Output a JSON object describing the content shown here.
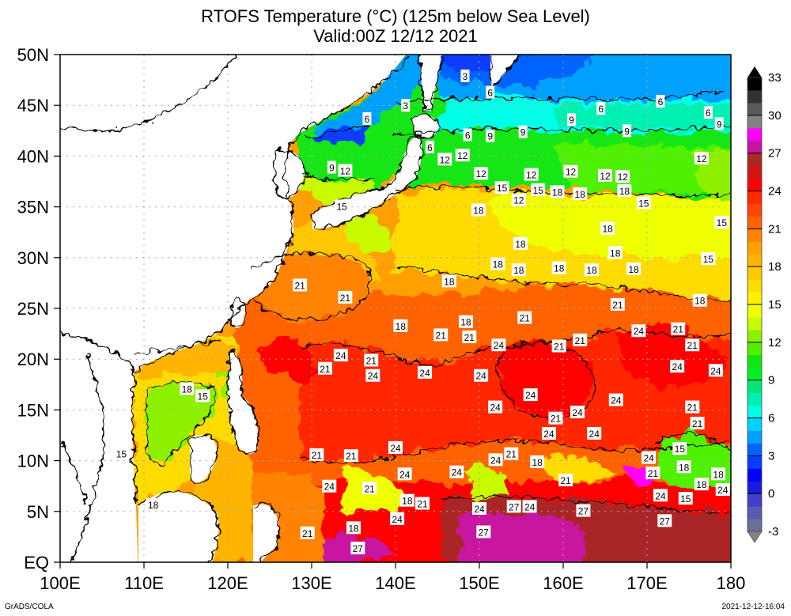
{
  "header": {
    "title_line1": "RTOFS Temperature (°C) (125m below Sea Level)",
    "title_line2": "Valid:00Z 12/12 2021"
  },
  "footer": {
    "left": "GrADS/COLA",
    "right": "2021-12-12-16:04"
  },
  "chart_data": {
    "type": "heatmap",
    "title": "RTOFS Temperature (°C) (125m below Sea Level)",
    "subtitle": "Valid:00Z 12/12 2021",
    "variable": "Ocean temperature",
    "units": "°C",
    "depth": "125m below Sea Level",
    "valid_time": "00Z 12/12 2021",
    "xlabel": "",
    "ylabel": "",
    "x_range": [
      100,
      180
    ],
    "y_range": [
      0,
      50
    ],
    "grid": true,
    "x_ticks": [
      {
        "value": 100,
        "label": "100E"
      },
      {
        "value": 110,
        "label": "110E"
      },
      {
        "value": 120,
        "label": "120E"
      },
      {
        "value": 130,
        "label": "130E"
      },
      {
        "value": 140,
        "label": "140E"
      },
      {
        "value": 150,
        "label": "150E"
      },
      {
        "value": 160,
        "label": "160E"
      },
      {
        "value": 170,
        "label": "170E"
      },
      {
        "value": 180,
        "label": "180"
      }
    ],
    "y_ticks": [
      {
        "value": 0,
        "label": "EQ"
      },
      {
        "value": 5,
        "label": "5N"
      },
      {
        "value": 10,
        "label": "10N"
      },
      {
        "value": 15,
        "label": "15N"
      },
      {
        "value": 20,
        "label": "20N"
      },
      {
        "value": 25,
        "label": "25N"
      },
      {
        "value": 30,
        "label": "30N"
      },
      {
        "value": 35,
        "label": "35N"
      },
      {
        "value": 40,
        "label": "40N"
      },
      {
        "value": 45,
        "label": "45N"
      },
      {
        "value": 50,
        "label": "50N"
      }
    ],
    "colorbar": {
      "placement": "right",
      "min": -3,
      "max": 33,
      "step": 1,
      "labels": [
        33,
        30,
        27,
        24,
        21,
        18,
        15,
        12,
        9,
        6,
        3,
        0,
        -3
      ],
      "colors": [
        "#6e6e9a",
        "#5a5ab4",
        "#4040c8",
        "#1a1ae0",
        "#0000ff",
        "#0a3cff",
        "#0064ff",
        "#00a0ff",
        "#00d2ff",
        "#00ffe6",
        "#00f0b4",
        "#00e678",
        "#00f028",
        "#14e614",
        "#50f000",
        "#8cf000",
        "#c8fa00",
        "#f0ff00",
        "#fff000",
        "#ffdc00",
        "#ffc800",
        "#ffb400",
        "#ffa000",
        "#ff8200",
        "#ff6400",
        "#ff4600",
        "#ff2800",
        "#ff0000",
        "#d21414",
        "#aa2828",
        "#c814a0",
        "#ff00ff",
        "#828282",
        "#5a5a5a",
        "#323232",
        "#000000"
      ]
    },
    "contour_interval": 3,
    "contour_labels": [
      {
        "lon": 148.3,
        "lat": 47.9,
        "value": 3
      },
      {
        "lon": 141.2,
        "lat": 45.0,
        "value": 3
      },
      {
        "lon": 136.6,
        "lat": 43.7,
        "value": 6
      },
      {
        "lon": 144.1,
        "lat": 40.9,
        "value": 6
      },
      {
        "lon": 151.3,
        "lat": 46.3,
        "value": 6
      },
      {
        "lon": 164.5,
        "lat": 44.7,
        "value": 6
      },
      {
        "lon": 171.6,
        "lat": 45.4,
        "value": 6
      },
      {
        "lon": 177.3,
        "lat": 44.3,
        "value": 6
      },
      {
        "lon": 148.6,
        "lat": 42.1,
        "value": 6
      },
      {
        "lon": 132.4,
        "lat": 38.9,
        "value": 9
      },
      {
        "lon": 151.3,
        "lat": 42.0,
        "value": 9
      },
      {
        "lon": 155.2,
        "lat": 42.4,
        "value": 9
      },
      {
        "lon": 161.0,
        "lat": 43.6,
        "value": 9
      },
      {
        "lon": 167.6,
        "lat": 42.5,
        "value": 9
      },
      {
        "lon": 178.6,
        "lat": 43.2,
        "value": 9
      },
      {
        "lon": 134.0,
        "lat": 38.6,
        "value": 12
      },
      {
        "lon": 145.5,
        "lat": 39.7,
        "value": 12
      },
      {
        "lon": 148.0,
        "lat": 40.1,
        "value": 12
      },
      {
        "lon": 150.2,
        "lat": 38.3,
        "value": 12
      },
      {
        "lon": 156.2,
        "lat": 38.2,
        "value": 12
      },
      {
        "lon": 160.9,
        "lat": 38.5,
        "value": 12
      },
      {
        "lon": 165.0,
        "lat": 38.1,
        "value": 12
      },
      {
        "lon": 167.1,
        "lat": 38.0,
        "value": 12
      },
      {
        "lon": 176.5,
        "lat": 39.8,
        "value": 12
      },
      {
        "lon": 154.7,
        "lat": 35.7,
        "value": 12
      },
      {
        "lon": 133.6,
        "lat": 35.1,
        "value": 15
      },
      {
        "lon": 152.7,
        "lat": 36.9,
        "value": 15
      },
      {
        "lon": 157.0,
        "lat": 36.7,
        "value": 15
      },
      {
        "lon": 169.6,
        "lat": 35.4,
        "value": 15
      },
      {
        "lon": 178.9,
        "lat": 33.5,
        "value": 15
      },
      {
        "lon": 177.3,
        "lat": 29.9,
        "value": 15
      },
      {
        "lon": 117.0,
        "lat": 16.4,
        "value": 15
      },
      {
        "lon": 107.3,
        "lat": 10.7,
        "value": 15
      },
      {
        "lon": 173.9,
        "lat": 11.2,
        "value": 15
      },
      {
        "lon": 174.6,
        "lat": 6.3,
        "value": 15
      },
      {
        "lon": 149.9,
        "lat": 34.7,
        "value": 18
      },
      {
        "lon": 159.3,
        "lat": 36.5,
        "value": 18
      },
      {
        "lon": 162.0,
        "lat": 36.3,
        "value": 18
      },
      {
        "lon": 167.3,
        "lat": 36.6,
        "value": 18
      },
      {
        "lon": 165.3,
        "lat": 32.9,
        "value": 18
      },
      {
        "lon": 154.9,
        "lat": 31.4,
        "value": 18
      },
      {
        "lon": 152.2,
        "lat": 29.4,
        "value": 18
      },
      {
        "lon": 154.7,
        "lat": 28.8,
        "value": 18
      },
      {
        "lon": 146.4,
        "lat": 27.7,
        "value": 18
      },
      {
        "lon": 159.5,
        "lat": 29.0,
        "value": 18
      },
      {
        "lon": 163.4,
        "lat": 28.8,
        "value": 18
      },
      {
        "lon": 166.2,
        "lat": 30.5,
        "value": 18
      },
      {
        "lon": 168.4,
        "lat": 28.9,
        "value": 18
      },
      {
        "lon": 176.3,
        "lat": 25.8,
        "value": 18
      },
      {
        "lon": 148.4,
        "lat": 23.7,
        "value": 18
      },
      {
        "lon": 140.6,
        "lat": 23.3,
        "value": 18
      },
      {
        "lon": 115.5,
        "lat": 17.1,
        "value": 18
      },
      {
        "lon": 111.1,
        "lat": 5.7,
        "value": 18
      },
      {
        "lon": 156.9,
        "lat": 9.9,
        "value": 18
      },
      {
        "lon": 174.4,
        "lat": 9.4,
        "value": 18
      },
      {
        "lon": 178.5,
        "lat": 8.7,
        "value": 18
      },
      {
        "lon": 176.5,
        "lat": 7.7,
        "value": 18
      },
      {
        "lon": 141.4,
        "lat": 6.1,
        "value": 18
      },
      {
        "lon": 135.0,
        "lat": 3.4,
        "value": 18
      },
      {
        "lon": 128.6,
        "lat": 27.3,
        "value": 21
      },
      {
        "lon": 134.0,
        "lat": 26.1,
        "value": 21
      },
      {
        "lon": 166.5,
        "lat": 25.4,
        "value": 21
      },
      {
        "lon": 155.4,
        "lat": 24.1,
        "value": 21
      },
      {
        "lon": 148.8,
        "lat": 22.2,
        "value": 21
      },
      {
        "lon": 145.4,
        "lat": 22.4,
        "value": 21
      },
      {
        "lon": 159.5,
        "lat": 21.3,
        "value": 21
      },
      {
        "lon": 162.0,
        "lat": 21.9,
        "value": 21
      },
      {
        "lon": 173.7,
        "lat": 23.0,
        "value": 21
      },
      {
        "lon": 175.4,
        "lat": 21.4,
        "value": 21
      },
      {
        "lon": 137.1,
        "lat": 19.9,
        "value": 21
      },
      {
        "lon": 131.6,
        "lat": 19.1,
        "value": 21
      },
      {
        "lon": 175.4,
        "lat": 15.3,
        "value": 21
      },
      {
        "lon": 176.0,
        "lat": 13.7,
        "value": 21
      },
      {
        "lon": 159.1,
        "lat": 14.2,
        "value": 21
      },
      {
        "lon": 130.6,
        "lat": 10.6,
        "value": 21
      },
      {
        "lon": 134.7,
        "lat": 10.5,
        "value": 21
      },
      {
        "lon": 136.9,
        "lat": 7.3,
        "value": 21
      },
      {
        "lon": 141.7,
        "lat": 5.8,
        "value": 21
      },
      {
        "lon": 153.8,
        "lat": 10.7,
        "value": 21
      },
      {
        "lon": 160.3,
        "lat": 8.1,
        "value": 21
      },
      {
        "lon": 170.7,
        "lat": 8.8,
        "value": 21
      },
      {
        "lon": 129.5,
        "lat": 2.9,
        "value": 21
      },
      {
        "lon": 133.1,
        "lat": 20.4,
        "value": 24
      },
      {
        "lon": 137.3,
        "lat": 18.4,
        "value": 24
      },
      {
        "lon": 152.3,
        "lat": 21.4,
        "value": 24
      },
      {
        "lon": 150.2,
        "lat": 18.4,
        "value": 24
      },
      {
        "lon": 156.1,
        "lat": 16.5,
        "value": 24
      },
      {
        "lon": 161.7,
        "lat": 14.8,
        "value": 24
      },
      {
        "lon": 151.9,
        "lat": 15.3,
        "value": 24
      },
      {
        "lon": 163.7,
        "lat": 12.7,
        "value": 24
      },
      {
        "lon": 158.3,
        "lat": 13.0,
        "value": 24
      },
      {
        "lon": 166.3,
        "lat": 16.0,
        "value": 24
      },
      {
        "lon": 169.0,
        "lat": 22.8,
        "value": 24
      },
      {
        "lon": 173.6,
        "lat": 19.3,
        "value": 24
      },
      {
        "lon": 178.2,
        "lat": 18.9,
        "value": 24
      },
      {
        "lon": 143.5,
        "lat": 18.7,
        "value": 24
      },
      {
        "lon": 140.0,
        "lat": 11.3,
        "value": 24
      },
      {
        "lon": 152.7,
        "lat": 10.1,
        "value": 24
      },
      {
        "lon": 147.3,
        "lat": 8.9,
        "value": 24
      },
      {
        "lon": 141.1,
        "lat": 8.7,
        "value": 24
      },
      {
        "lon": 132.1,
        "lat": 7.5,
        "value": 24
      },
      {
        "lon": 170.2,
        "lat": 10.0,
        "value": 24
      },
      {
        "lon": 171.6,
        "lat": 6.6,
        "value": 24
      },
      {
        "lon": 177.9,
        "lat": 8.1,
        "value": 24
      },
      {
        "lon": 150.0,
        "lat": 5.3,
        "value": 24
      },
      {
        "lon": 140.2,
        "lat": 4.3,
        "value": 24
      },
      {
        "lon": 156.0,
        "lat": 5.5,
        "value": 24
      },
      {
        "lon": 154.5,
        "lat": 5.5,
        "value": 27
      },
      {
        "lon": 162.4,
        "lat": 5.1,
        "value": 27
      },
      {
        "lon": 172.1,
        "lat": 4.1,
        "value": 27
      },
      {
        "lon": 150.5,
        "lat": 3.0,
        "value": 27
      },
      {
        "lon": 135.5,
        "lat": 1.4,
        "value": 27
      }
    ]
  }
}
